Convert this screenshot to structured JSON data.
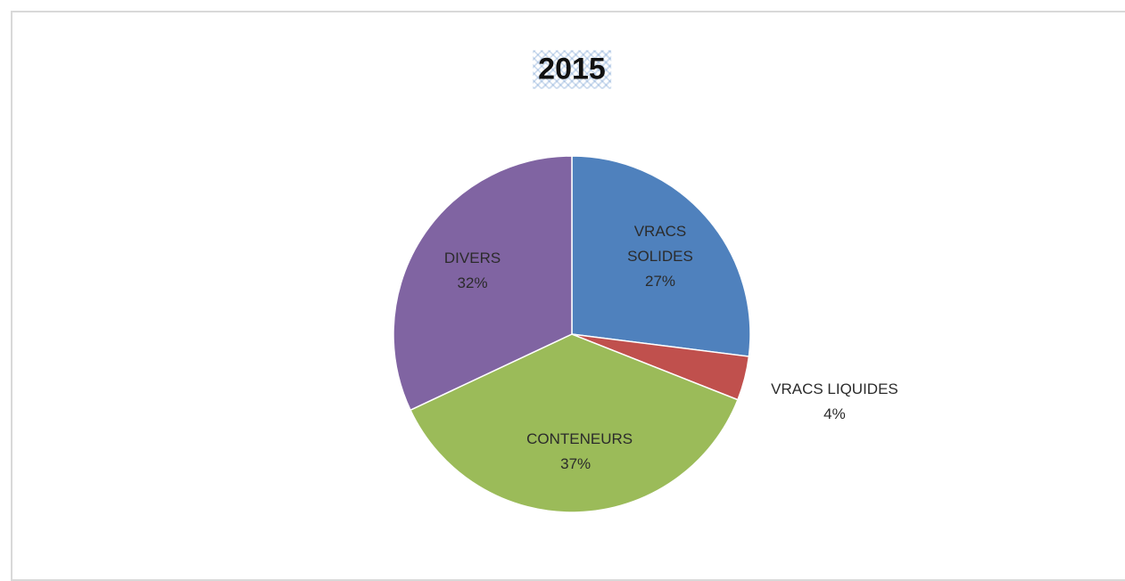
{
  "chart_data": {
    "type": "pie",
    "title": "2015",
    "categories": [
      "VRACS SOLIDES",
      "VRACS LIQUIDES",
      "CONTENEURS",
      "DIVERS"
    ],
    "values": [
      27,
      4,
      37,
      32
    ],
    "value_labels": [
      "27%",
      "4%",
      "37%",
      "32%"
    ],
    "colors": [
      "#4f81bd",
      "#c0504d",
      "#9bbb59",
      "#8064a2"
    ]
  }
}
